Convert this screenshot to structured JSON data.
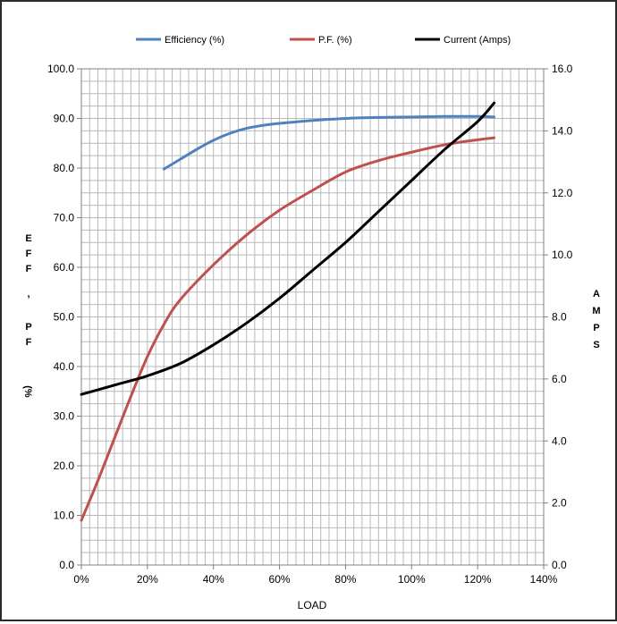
{
  "chart_data": {
    "type": "line",
    "title": "",
    "xlabel": "LOAD",
    "ylabel_left": [
      "E",
      "F",
      "F",
      ",",
      "P",
      "F",
      "(%"
    ],
    "ylabel_right": [
      "A",
      "M",
      "P",
      "S"
    ],
    "x_ticks": [
      "0%",
      "20%",
      "40%",
      "60%",
      "80%",
      "100%",
      "120%",
      "140%"
    ],
    "y_left_ticks": [
      "0.0",
      "10.0",
      "20.0",
      "30.0",
      "40.0",
      "50.0",
      "60.0",
      "70.0",
      "80.0",
      "90.0",
      "100.0"
    ],
    "y_right_ticks": [
      "0.0",
      "2.0",
      "4.0",
      "6.0",
      "8.0",
      "10.0",
      "12.0",
      "14.0",
      "16.0"
    ],
    "xlim": [
      0,
      140
    ],
    "ylim_left": [
      0,
      100
    ],
    "ylim_right": [
      0,
      16
    ],
    "grid": true,
    "legend_position": "top",
    "series": [
      {
        "name": "Efficiency (%)",
        "axis": "left",
        "color": "#4f81bd",
        "x": [
          25,
          30,
          35,
          40,
          45,
          50,
          55,
          60,
          70,
          80,
          90,
          100,
          110,
          120,
          125
        ],
        "y": [
          79.8,
          81.8,
          83.8,
          85.6,
          87.0,
          88.0,
          88.6,
          89.0,
          89.6,
          90.0,
          90.2,
          90.3,
          90.4,
          90.4,
          90.3
        ]
      },
      {
        "name": "P.F. (%)",
        "axis": "left",
        "color": "#c0504d",
        "x": [
          0,
          5,
          10,
          15,
          20,
          25,
          30,
          40,
          50,
          60,
          70,
          80,
          90,
          100,
          110,
          120,
          125
        ],
        "y": [
          9.0,
          17.0,
          25.5,
          34.0,
          42.0,
          48.5,
          53.5,
          60.5,
          66.5,
          71.5,
          75.5,
          79.2,
          81.5,
          83.2,
          84.7,
          85.7,
          86.1
        ]
      },
      {
        "name": "Current (Amps)",
        "axis": "right",
        "color": "#000000",
        "x": [
          0,
          10,
          20,
          30,
          40,
          50,
          60,
          70,
          80,
          90,
          100,
          110,
          120,
          125
        ],
        "y": [
          5.5,
          5.8,
          6.1,
          6.5,
          7.1,
          7.8,
          8.6,
          9.5,
          10.4,
          11.4,
          12.4,
          13.4,
          14.3,
          14.9
        ]
      }
    ]
  }
}
